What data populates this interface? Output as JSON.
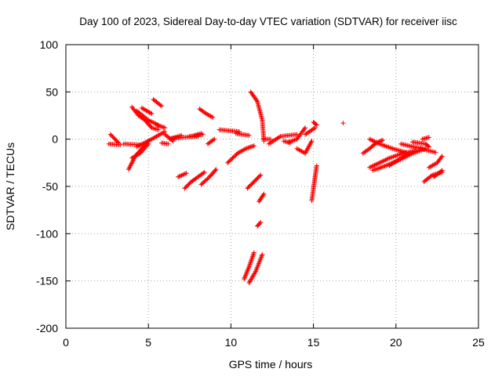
{
  "chart_data": {
    "type": "scatter",
    "title": "Day 100 of 2023, Sidereal Day-to-day VTEC variation (SDTVAR) for receiver iisc",
    "xlabel": "GPS time / hours",
    "ylabel": "SDTVAR / TECUs",
    "xlim": [
      0,
      25
    ],
    "ylim": [
      -200,
      100
    ],
    "x_ticks": [
      0,
      5,
      10,
      15,
      20,
      25
    ],
    "y_ticks": [
      -200,
      -150,
      -100,
      -50,
      0,
      50,
      100
    ],
    "grid": true,
    "marker": "plus",
    "color": "#ff0000",
    "segments": [
      [
        [
          2.6,
          -5
        ],
        [
          3.3,
          -6
        ]
      ],
      [
        [
          2.7,
          5
        ],
        [
          3.2,
          -4
        ]
      ],
      [
        [
          3.5,
          -5
        ],
        [
          4.5,
          -6
        ]
      ],
      [
        [
          3.8,
          -32
        ],
        [
          4.2,
          -18
        ],
        [
          4.6,
          -10
        ],
        [
          5.0,
          -2
        ]
      ],
      [
        [
          4.0,
          -20
        ],
        [
          4.5,
          -15
        ],
        [
          5.0,
          -5
        ]
      ],
      [
        [
          4.3,
          -8
        ],
        [
          5.2,
          0
        ],
        [
          6.0,
          8
        ]
      ],
      [
        [
          4.0,
          34
        ],
        [
          4.4,
          25
        ],
        [
          4.8,
          20
        ],
        [
          5.2,
          12
        ],
        [
          5.6,
          10
        ]
      ],
      [
        [
          4.3,
          30
        ],
        [
          5.0,
          20
        ],
        [
          5.6,
          15
        ]
      ],
      [
        [
          4.6,
          33
        ],
        [
          5.2,
          27
        ]
      ],
      [
        [
          5.3,
          42
        ],
        [
          5.8,
          35
        ]
      ],
      [
        [
          5.5,
          15
        ],
        [
          6.0,
          12
        ]
      ],
      [
        [
          5.8,
          -4
        ],
        [
          6.2,
          -5
        ]
      ],
      [
        [
          6.0,
          5
        ],
        [
          6.5,
          -2
        ]
      ],
      [
        [
          6.3,
          0
        ],
        [
          7.0,
          4
        ]
      ],
      [
        [
          6.4,
          1
        ],
        [
          8.0,
          3
        ]
      ],
      [
        [
          6.8,
          -40
        ],
        [
          7.3,
          -36
        ]
      ],
      [
        [
          7.2,
          -52
        ],
        [
          7.6,
          -45
        ],
        [
          8.0,
          -40
        ],
        [
          8.4,
          -35
        ]
      ],
      [
        [
          7.5,
          3
        ],
        [
          8.3,
          5
        ]
      ],
      [
        [
          7.8,
          4
        ],
        [
          8.2,
          6
        ]
      ],
      [
        [
          8.1,
          32
        ],
        [
          8.5,
          27
        ],
        [
          8.9,
          23
        ]
      ],
      [
        [
          8.2,
          -48
        ],
        [
          8.7,
          -40
        ],
        [
          9.1,
          -32
        ]
      ],
      [
        [
          8.6,
          -5
        ],
        [
          9.0,
          0
        ]
      ],
      [
        [
          9.3,
          10
        ],
        [
          10.5,
          8
        ]
      ],
      [
        [
          9.8,
          -25
        ],
        [
          10.4,
          -15
        ],
        [
          10.9,
          -10
        ],
        [
          11.4,
          -7
        ]
      ],
      [
        [
          10.3,
          6
        ],
        [
          11.1,
          4
        ]
      ],
      [
        [
          11.0,
          -52
        ],
        [
          11.4,
          -45
        ],
        [
          11.8,
          -38
        ]
      ],
      [
        [
          10.8,
          -148
        ],
        [
          11.1,
          -135
        ],
        [
          11.4,
          -120
        ]
      ],
      [
        [
          11.1,
          -152
        ],
        [
          11.5,
          -140
        ],
        [
          11.9,
          -122
        ]
      ],
      [
        [
          11.2,
          50
        ],
        [
          11.6,
          40
        ],
        [
          11.9,
          20
        ],
        [
          12.0,
          -2
        ]
      ],
      [
        [
          11.6,
          -92
        ],
        [
          11.8,
          -88
        ]
      ],
      [
        [
          11.7,
          -66
        ],
        [
          12.0,
          -58
        ]
      ],
      [
        [
          12.0,
          0
        ],
        [
          12.4,
          0
        ]
      ],
      [
        [
          12.3,
          -5
        ],
        [
          13.0,
          3
        ],
        [
          14.0,
          5
        ]
      ],
      [
        [
          13.2,
          -2
        ],
        [
          13.6,
          -4
        ]
      ],
      [
        [
          13.5,
          -3
        ],
        [
          14.0,
          0
        ],
        [
          14.5,
          12
        ]
      ],
      [
        [
          14.0,
          -10
        ],
        [
          14.5,
          -15
        ],
        [
          14.9,
          -2
        ]
      ],
      [
        [
          14.5,
          5
        ],
        [
          15.1,
          12
        ]
      ],
      [
        [
          14.9,
          -65
        ],
        [
          15.0,
          -52
        ],
        [
          15.1,
          -40
        ],
        [
          15.2,
          -28
        ]
      ],
      [
        [
          15.0,
          18
        ],
        [
          15.2,
          15
        ]
      ],
      [
        [
          16.8,
          17
        ]
      ],
      [
        [
          18.0,
          -15
        ],
        [
          18.4,
          -10
        ],
        [
          18.8,
          -4
        ],
        [
          19.2,
          -1
        ]
      ],
      [
        [
          18.4,
          0
        ],
        [
          19.0,
          -5
        ],
        [
          19.8,
          -10
        ],
        [
          20.6,
          -14
        ]
      ],
      [
        [
          18.4,
          -30
        ],
        [
          19.0,
          -25
        ],
        [
          19.6,
          -20
        ],
        [
          20.4,
          -15
        ],
        [
          21.2,
          -12
        ]
      ],
      [
        [
          18.6,
          -33
        ],
        [
          19.4,
          -28
        ],
        [
          20.2,
          -22
        ],
        [
          21.0,
          -15
        ],
        [
          21.8,
          -10
        ]
      ],
      [
        [
          19.6,
          -28
        ],
        [
          20.3,
          -20
        ],
        [
          20.8,
          -15
        ]
      ],
      [
        [
          20.3,
          -5
        ],
        [
          21.0,
          -8
        ],
        [
          21.6,
          -10
        ]
      ],
      [
        [
          21.0,
          -3
        ],
        [
          21.8,
          -5
        ],
        [
          22.0,
          -8
        ]
      ],
      [
        [
          21.5,
          -10
        ],
        [
          22.4,
          -14
        ]
      ],
      [
        [
          21.6,
          0
        ],
        [
          22.0,
          2
        ]
      ],
      [
        [
          21.7,
          -45
        ],
        [
          22.2,
          -38
        ],
        [
          22.8,
          -35
        ]
      ],
      [
        [
          22.0,
          -30
        ],
        [
          22.5,
          -25
        ],
        [
          22.8,
          -18
        ]
      ],
      [
        [
          22.3,
          -40
        ],
        [
          22.8,
          -33
        ]
      ]
    ]
  }
}
